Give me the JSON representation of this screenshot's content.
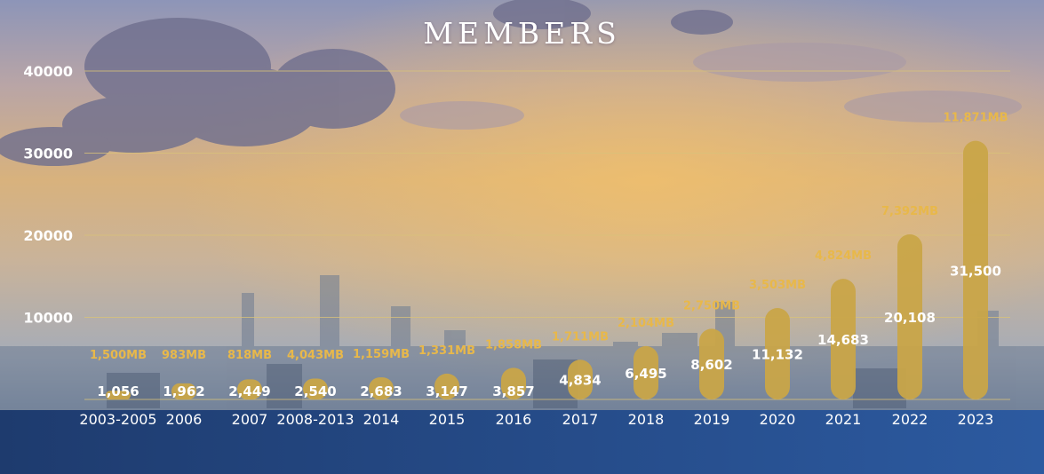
{
  "title": "MEMBERS",
  "colors": {
    "bar": "#c9a548",
    "grid": "#d9c27a",
    "value_label": "#ffffff",
    "mb_label": "#e8b84a",
    "band": "#25467e"
  },
  "chart_data": {
    "type": "bar",
    "title": "MEMBERS",
    "categories": [
      "2003-2005",
      "2006",
      "2007",
      "2008-2013",
      "2014",
      "2015",
      "2016",
      "2017",
      "2018",
      "2019",
      "2020",
      "2021",
      "2022",
      "2023"
    ],
    "values": [
      1056,
      1962,
      2449,
      2540,
      2683,
      3147,
      3857,
      4834,
      6495,
      8602,
      11132,
      14683,
      20108,
      31500
    ],
    "value_labels": [
      "1,056",
      "1,962",
      "2,449",
      "2,540",
      "2,683",
      "3,147",
      "3,857",
      "4,834",
      "6,495",
      "8,602",
      "11,132",
      "14,683",
      "20,108",
      "31,500"
    ],
    "secondary_labels": [
      "1,500MB",
      "983MB",
      "818MB",
      "4,043MB",
      "1,159MB",
      "1,331MB",
      "1,858MB",
      "1,711MB",
      "2,104MB",
      "2,750MB",
      "3,503MB",
      "4,824MB",
      "7,392MB",
      "11,871MB"
    ],
    "yticks": [
      "10000",
      "20000",
      "30000",
      "40000"
    ],
    "ylim": [
      0,
      40000
    ],
    "grid": true,
    "xlabel": "",
    "ylabel": ""
  }
}
